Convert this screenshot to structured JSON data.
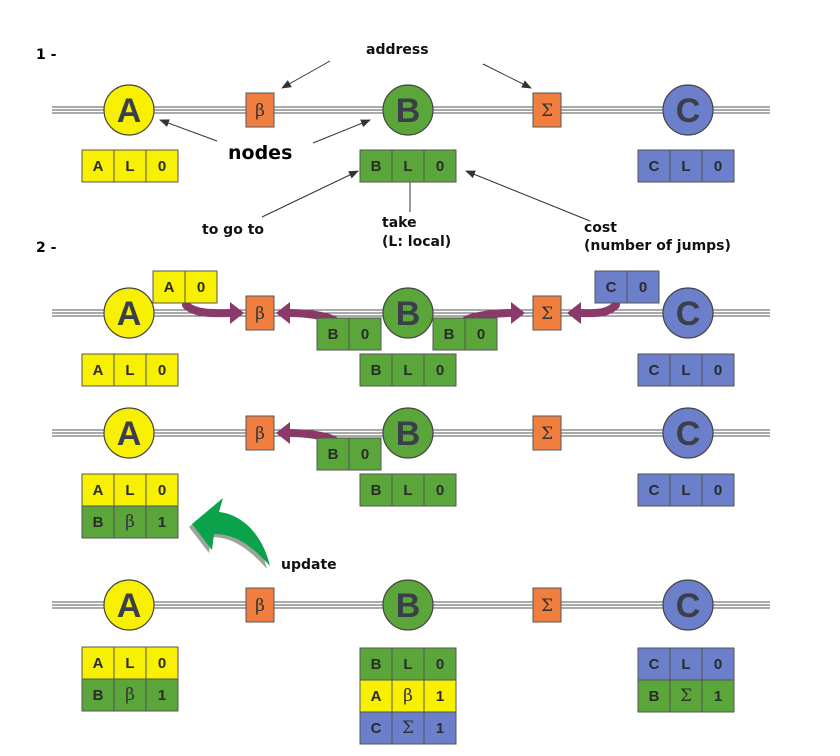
{
  "steps": [
    "1 -",
    "2 -"
  ],
  "labels": {
    "address": "address",
    "nodes": "nodes",
    "to_go_to": "to go to",
    "take": "take",
    "take_sub": "(L: local)",
    "cost": "cost",
    "cost_sub": "(number of jumps)",
    "update": "update"
  },
  "nodes": [
    "A",
    "B",
    "C"
  ],
  "addresses": [
    "β",
    "Σ"
  ],
  "colors": {
    "yellow": "#f7f000",
    "green": "#5ba63a",
    "blue": "#6b7fcb",
    "orange": "#f07f3f",
    "arrow": "#8a3a68",
    "update_arrow": "#0aa24a"
  },
  "tables": {
    "A_initial": [
      [
        "A",
        "L",
        "0"
      ]
    ],
    "B_initial": [
      [
        "B",
        "L",
        "0"
      ]
    ],
    "C_initial": [
      [
        "C",
        "L",
        "0"
      ]
    ],
    "A_updated": [
      [
        "A",
        "L",
        "0"
      ],
      [
        "B",
        "β",
        "1"
      ]
    ],
    "A_final": [
      [
        "A",
        "L",
        "0"
      ],
      [
        "B",
        "β",
        "1"
      ]
    ],
    "B_final": [
      [
        "B",
        "L",
        "0"
      ],
      [
        "A",
        "β",
        "1"
      ],
      [
        "C",
        "Σ",
        "1"
      ]
    ],
    "C_final": [
      [
        "C",
        "L",
        "0"
      ],
      [
        "B",
        "Σ",
        "1"
      ]
    ]
  },
  "messages": {
    "A": [
      "A",
      "0"
    ],
    "B": [
      "B",
      "0"
    ],
    "C": [
      "C",
      "0"
    ]
  }
}
